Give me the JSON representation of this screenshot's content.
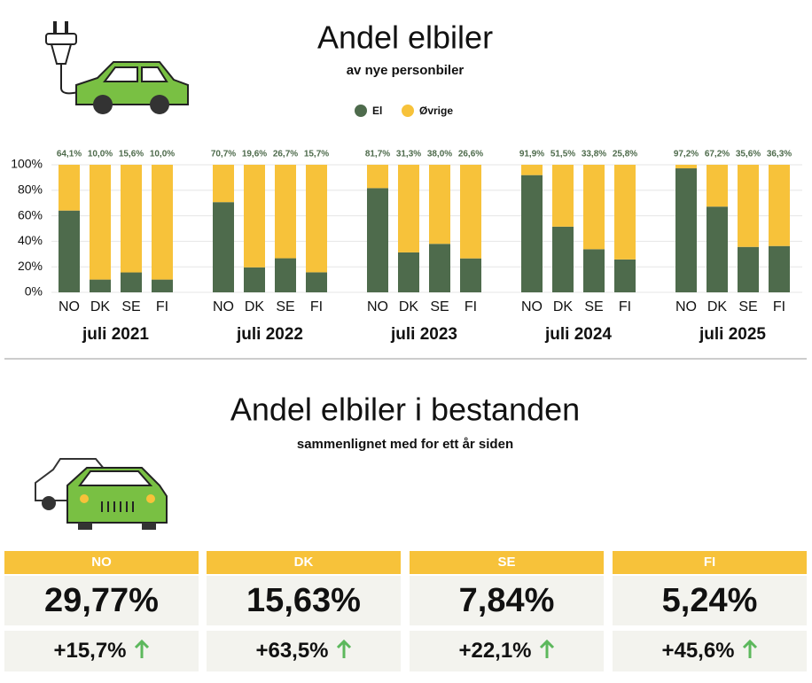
{
  "chart_data": {
    "type": "bar",
    "stacked": true,
    "title": "Andel elbiler",
    "subtitle": "av nye personbiler",
    "categories": [
      "NO",
      "DK",
      "SE",
      "FI",
      "NO",
      "DK",
      "SE",
      "FI",
      "NO",
      "DK",
      "SE",
      "FI",
      "NO",
      "DK",
      "SE",
      "FI",
      "NO",
      "DK",
      "SE",
      "FI"
    ],
    "group_labels": [
      "juli 2021",
      "juli 2022",
      "juli 2023",
      "juli 2024",
      "juli 2025"
    ],
    "series": [
      {
        "name": "El",
        "color": "#4e6b4c",
        "values": [
          64.1,
          10.0,
          15.6,
          10.0,
          70.7,
          19.6,
          26.7,
          15.7,
          81.7,
          31.3,
          38.0,
          26.6,
          91.9,
          51.5,
          33.8,
          25.8,
          97.2,
          67.2,
          35.6,
          36.3
        ],
        "value_labels": [
          "64,1%",
          "10,0%",
          "15,6%",
          "10,0%",
          "70,7%",
          "19,6%",
          "26,7%",
          "15,7%",
          "81,7%",
          "31,3%",
          "38,0%",
          "26,6%",
          "91,9%",
          "51,5%",
          "33,8%",
          "25,8%",
          "97,2%",
          "67,2%",
          "35,6%",
          "36,3%"
        ]
      },
      {
        "name": "Øvrige",
        "color": "#f7c23a",
        "values": [
          35.9,
          90.0,
          84.4,
          90.0,
          29.3,
          80.4,
          73.3,
          84.3,
          18.3,
          68.7,
          62.0,
          73.4,
          8.1,
          48.5,
          66.2,
          74.2,
          2.8,
          32.8,
          64.4,
          63.7
        ]
      }
    ],
    "ylim": [
      0,
      100
    ],
    "yticks": [
      {
        "value": 0,
        "label": "0%"
      },
      {
        "value": 20,
        "label": "20%"
      },
      {
        "value": 40,
        "label": "40%"
      },
      {
        "value": 60,
        "label": "60%"
      },
      {
        "value": 80,
        "label": "80%"
      },
      {
        "value": 100,
        "label": "100%"
      }
    ],
    "grid": true
  },
  "stock": {
    "title": "Andel elbiler i bestanden",
    "subtitle": "sammenlignet med for ett år siden",
    "cards": [
      {
        "country": "NO",
        "share": "29,77%",
        "change": "+15,7%"
      },
      {
        "country": "DK",
        "share": "15,63%",
        "change": "+63,5%"
      },
      {
        "country": "SE",
        "share": "7,84%",
        "change": "+22,1%"
      },
      {
        "country": "FI",
        "share": "5,24%",
        "change": "+45,6%"
      }
    ]
  }
}
